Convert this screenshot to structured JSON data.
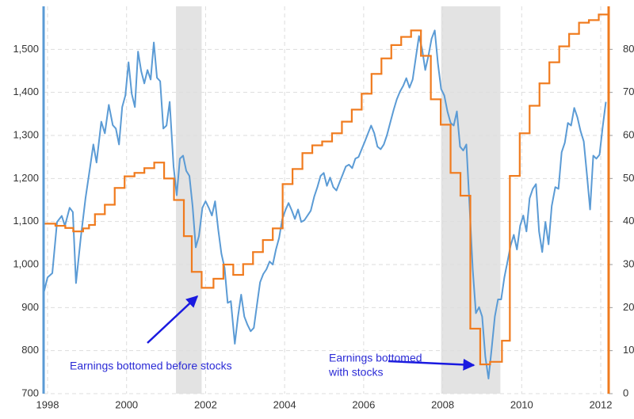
{
  "chart_data": {
    "type": "line",
    "xlim": [
      1997.9,
      2012.2
    ],
    "xticks": [
      1998,
      2000,
      2002,
      2004,
      2006,
      2008,
      2010,
      2012
    ],
    "ylim": [
      700,
      1600
    ],
    "yticks": [
      700,
      800,
      900,
      {
        "value": 1000,
        "label": "1,000"
      },
      {
        "value": 1100,
        "label": "1,100"
      },
      {
        "value": 1200,
        "label": "1,200"
      },
      {
        "value": 1300,
        "label": "1,300"
      },
      {
        "value": 1400,
        "label": "1,400"
      },
      {
        "value": 1500,
        "label": "1,500"
      }
    ],
    "y2lim": [
      0,
      90
    ],
    "y2ticks": [
      0,
      10,
      20,
      30,
      40,
      50,
      60,
      70,
      80
    ],
    "grid": true,
    "shaded_regions": [
      [
        2001.25,
        2001.9
      ],
      [
        2007.96,
        2009.46
      ]
    ],
    "series": [
      {
        "color": "#5b9bd5",
        "x": [
          1997.9,
          1998.0,
          1998.12,
          1998.24,
          1998.36,
          1998.44,
          1998.56,
          1998.64,
          1998.72,
          1998.84,
          1998.96,
          1999.08,
          1999.16,
          1999.24,
          1999.36,
          1999.45,
          1999.55,
          1999.65,
          1999.73,
          1999.81,
          1999.89,
          1999.97,
          2000.05,
          2000.13,
          2000.21,
          2000.29,
          2000.37,
          2000.45,
          2000.53,
          2000.61,
          2000.69,
          2000.77,
          2000.85,
          2000.93,
          2001.01,
          2001.09,
          2001.19,
          2001.27,
          2001.35,
          2001.43,
          2001.51,
          2001.59,
          2001.67,
          2001.75,
          2001.83,
          2001.92,
          2002.0,
          2002.08,
          2002.16,
          2002.24,
          2002.32,
          2002.4,
          2002.48,
          2002.56,
          2002.64,
          2002.74,
          2002.82,
          2002.9,
          2002.98,
          2003.06,
          2003.14,
          2003.22,
          2003.3,
          2003.38,
          2003.46,
          2003.54,
          2003.62,
          2003.7,
          2003.78,
          2003.86,
          2003.94,
          2004.02,
          2004.1,
          2004.18,
          2004.26,
          2004.34,
          2004.42,
          2004.5,
          2004.58,
          2004.66,
          2004.75,
          2004.83,
          2004.91,
          2004.99,
          2005.07,
          2005.15,
          2005.23,
          2005.31,
          2005.39,
          2005.47,
          2005.55,
          2005.63,
          2005.71,
          2005.79,
          2005.87,
          2005.95,
          2006.03,
          2006.11,
          2006.19,
          2006.27,
          2006.35,
          2006.43,
          2006.51,
          2006.59,
          2006.67,
          2006.76,
          2006.84,
          2006.92,
          2007.0,
          2007.08,
          2007.16,
          2007.24,
          2007.32,
          2007.4,
          2007.48,
          2007.56,
          2007.64,
          2007.72,
          2007.8,
          2007.88,
          2007.96,
          2008.04,
          2008.12,
          2008.2,
          2008.28,
          2008.36,
          2008.44,
          2008.52,
          2008.6,
          2008.68,
          2008.76,
          2008.84,
          2008.92,
          2009.0,
          2009.08,
          2009.16,
          2009.24,
          2009.32,
          2009.4,
          2009.48,
          2009.56,
          2009.64,
          2009.72,
          2009.8,
          2009.88,
          2009.96,
          2010.04,
          2010.12,
          2010.2,
          2010.28,
          2010.36,
          2010.44,
          2010.52,
          2010.6,
          2010.68,
          2010.76,
          2010.85,
          2010.93,
          2011.01,
          2011.09,
          2011.17,
          2011.25,
          2011.33,
          2011.41,
          2011.49,
          2011.57,
          2011.65,
          2011.73,
          2011.81,
          2011.89,
          2011.97,
          2012.05,
          2012.13
        ],
        "values": [
          933,
          970,
          980,
          1099,
          1113,
          1090,
          1132,
          1122,
          957,
          1062,
          1154,
          1228,
          1279,
          1237,
          1332,
          1305,
          1371,
          1324,
          1316,
          1279,
          1366,
          1393,
          1470,
          1397,
          1366,
          1495,
          1449,
          1421,
          1452,
          1430,
          1516,
          1434,
          1426,
          1316,
          1323,
          1378,
          1228,
          1161,
          1246,
          1253,
          1218,
          1206,
          1136,
          1040,
          1066,
          1132,
          1147,
          1132,
          1114,
          1147,
          1081,
          1025,
          992,
          911,
          915,
          816,
          879,
          930,
          879,
          860,
          845,
          853,
          906,
          959,
          978,
          989,
          1007,
          1000,
          1035,
          1062,
          1106,
          1126,
          1143,
          1126,
          1106,
          1128,
          1099,
          1103,
          1114,
          1125,
          1158,
          1180,
          1206,
          1213,
          1183,
          1202,
          1180,
          1172,
          1191,
          1209,
          1228,
          1232,
          1224,
          1246,
          1250,
          1268,
          1286,
          1305,
          1323,
          1305,
          1274,
          1268,
          1279,
          1301,
          1329,
          1360,
          1384,
          1402,
          1415,
          1433,
          1411,
          1430,
          1481,
          1531,
          1500,
          1452,
          1485,
          1525,
          1544,
          1467,
          1408,
          1393,
          1356,
          1329,
          1323,
          1356,
          1274,
          1265,
          1279,
          1136,
          989,
          887,
          901,
          879,
          786,
          735,
          805,
          879,
          919,
          919,
          970,
          1007,
          1044,
          1069,
          1035,
          1090,
          1114,
          1077,
          1154,
          1176,
          1187,
          1077,
          1029,
          1099,
          1047,
          1136,
          1180,
          1176,
          1261,
          1283,
          1329,
          1323,
          1364,
          1342,
          1310,
          1286,
          1209,
          1128,
          1253,
          1246,
          1255,
          1320,
          1378
        ]
      },
      {
        "color": "#f07b1e",
        "axis": "y2",
        "step": true,
        "x": [
          1997.9,
          1998.2,
          1998.45,
          1998.65,
          1998.9,
          1999.05,
          1999.2,
          1999.45,
          1999.7,
          1999.95,
          2000.2,
          2000.45,
          2000.7,
          2000.95,
          2001.2,
          2001.45,
          2001.65,
          2001.9,
          2002.2,
          2002.45,
          2002.7,
          2002.95,
          2003.2,
          2003.45,
          2003.7,
          2003.95,
          2004.2,
          2004.45,
          2004.7,
          2004.95,
          2005.2,
          2005.45,
          2005.7,
          2005.95,
          2006.2,
          2006.45,
          2006.7,
          2006.95,
          2007.2,
          2007.45,
          2007.7,
          2007.95,
          2008.2,
          2008.45,
          2008.7,
          2008.95,
          2009.2,
          2009.5,
          2009.7,
          2009.95,
          2010.2,
          2010.45,
          2010.7,
          2010.95,
          2011.2,
          2011.45,
          2011.7,
          2011.95
        ],
        "values": [
          39.5,
          39,
          38.5,
          37.7,
          38.4,
          39.2,
          41.7,
          43.9,
          47.8,
          50.5,
          51.3,
          52.4,
          53.7,
          50,
          45,
          36.6,
          28.3,
          24.6,
          26.7,
          30,
          27.6,
          30.1,
          32.9,
          35.7,
          38.4,
          48.7,
          52.2,
          55.9,
          57.7,
          58.6,
          60.5,
          63.2,
          66,
          69.7,
          74.3,
          77.9,
          81,
          82.9,
          84.4,
          78.5,
          68.4,
          62.5,
          51.3,
          46,
          15.1,
          6.8,
          7.4,
          12.3,
          50.6,
          60.5,
          66.9,
          72.1,
          77,
          80.7,
          83.6,
          86.2,
          86.8,
          88.1
        ]
      }
    ],
    "annotations": [
      {
        "lines": [
          "Earnings bottomed before stocks"
        ]
      },
      {
        "lines": [
          "Earnings bottomed",
          "with stocks"
        ]
      }
    ]
  }
}
